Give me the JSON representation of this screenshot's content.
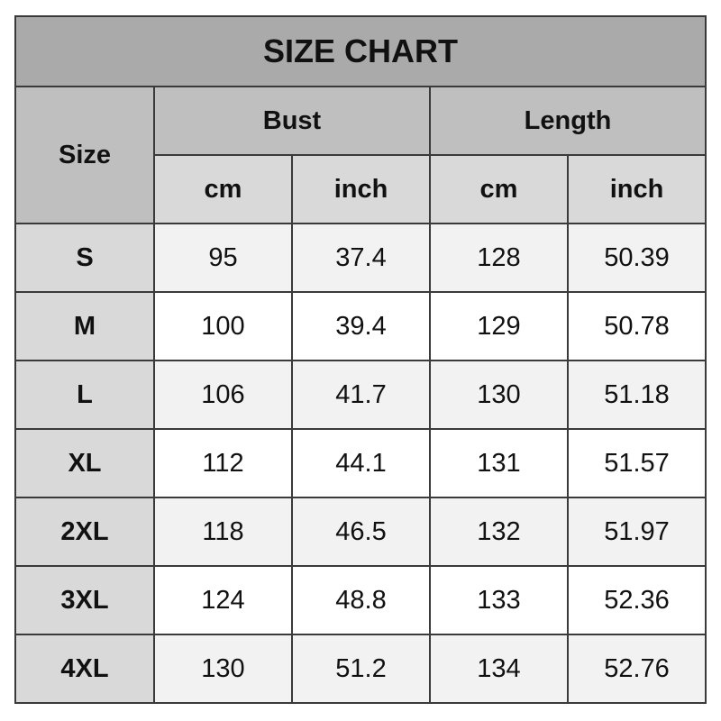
{
  "title": "SIZE CHART",
  "headers": {
    "size": "Size",
    "bust": "Bust",
    "length": "Length",
    "units": [
      "cm",
      "inch",
      "cm",
      "inch"
    ]
  },
  "rows": [
    [
      "S",
      "95",
      "37.4",
      "128",
      "50.39"
    ],
    [
      "M",
      "100",
      "39.4",
      "129",
      "50.78"
    ],
    [
      "L",
      "106",
      "41.7",
      "130",
      "51.18"
    ],
    [
      "XL",
      "112",
      "44.1",
      "131",
      "51.57"
    ],
    [
      "2XL",
      "118",
      "46.5",
      "132",
      "51.97"
    ],
    [
      "3XL",
      "124",
      "48.8",
      "133",
      "52.36"
    ],
    [
      "4XL",
      "130",
      "51.2",
      "134",
      "52.76"
    ]
  ]
}
